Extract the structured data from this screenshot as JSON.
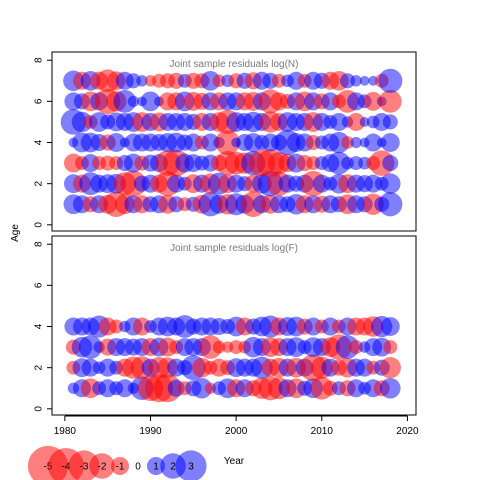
{
  "chart_data": {
    "type": "scatter",
    "xlabel": "Year",
    "ylabel": "Age",
    "xlim": [
      1978.5,
      2021
    ],
    "x_ticks": [
      "1980",
      "1990",
      "2000",
      "2010",
      "2020"
    ],
    "legend": {
      "placement": "bottom-left",
      "values": [
        -5,
        -4,
        -3,
        -2,
        -1,
        0,
        1,
        2,
        3
      ],
      "labels": [
        "-5",
        "-4",
        "-3",
        "-2",
        "-1",
        "0",
        "1",
        "2",
        "3"
      ]
    },
    "colors": {
      "positive": "#0000ff",
      "negative": "#ff0000",
      "frame": "#000000",
      "title": "#7a7a7a"
    },
    "panels": [
      {
        "title": "Joint sample residuals log(N)",
        "ylim": [
          -0.3,
          8.4
        ],
        "y_ticks": [
          "0",
          "2",
          "4",
          "6",
          "8"
        ],
        "ages": [
          1,
          2,
          3,
          4,
          5,
          6,
          7
        ],
        "years": [
          1981,
          2018
        ],
        "residuals": {
          "1": [
            1.2,
            1.0,
            -0.8,
            1.0,
            -1.1,
            -2.0,
            -1.2,
            1.0,
            -1.0,
            0.8,
            1.0,
            -1.1,
            0.8,
            -0.6,
            0.7,
            -1.1,
            1.8,
            1.1,
            -1.3,
            1.5,
            1.1,
            -2.0,
            1.0,
            -1.1,
            1.0,
            0.8,
            1.3,
            -1.0,
            1.0,
            -0.9,
            1.0,
            0.8,
            -1.2,
            1.0,
            0.8,
            -1.4,
            0.7,
            1.8
          ],
          "2": [
            1.1,
            -1.0,
            1.6,
            1.0,
            1.1,
            1.2,
            -1.6,
            -2.1,
            0.8,
            1.0,
            -1.0,
            -1.9,
            1.0,
            0.6,
            -1.1,
            1.0,
            -1.3,
            1.5,
            -1.1,
            1.0,
            0.7,
            -1.0,
            1.2,
            2.0,
            -1.8,
            1.0,
            0.8,
            1.0,
            -2.0,
            1.0,
            0.6,
            1.2,
            -1.1,
            1.0,
            0.9,
            1.0,
            0.6,
            1.3
          ],
          "3": [
            -1.1,
            -0.6,
            1.0,
            -0.6,
            -0.7,
            -0.6,
            0.8,
            1.1,
            -0.7,
            0.9,
            1.0,
            -2.0,
            -2.2,
            1.1,
            1.0,
            0.7,
            0.9,
            -0.8,
            -1.8,
            -1.6,
            -1.4,
            1.8,
            -2.2,
            -2.4,
            -1.5,
            -1.0,
            1.1,
            -0.8,
            -0.6,
            0.6,
            1.0,
            1.6,
            0.5,
            0.6,
            0.5,
            -0.6,
            -2.0,
            0.8
          ],
          "4": [
            0.3,
            1.2,
            1.2,
            0.9,
            -0.8,
            1.1,
            0.3,
            1.0,
            1.0,
            1.0,
            0.9,
            1.1,
            1.2,
            0.8,
            1.0,
            -0.6,
            1.0,
            0.4,
            -1.9,
            0.3,
            0.9,
            1.1,
            0.7,
            1.0,
            0.8,
            2.0,
            1.1,
            1.0,
            -0.7,
            0.6,
            1.0,
            1.4,
            -0.5,
            0.4,
            0.3,
            1.0,
            0.3,
            1.1
          ],
          "5": [
            2.0,
            1.3,
            -0.6,
            1.2,
            0.7,
            1.1,
            1.0,
            1.2,
            -1.2,
            1.0,
            -1.1,
            1.0,
            1.0,
            1.0,
            0.8,
            -1.0,
            1.0,
            -1.2,
            -1.8,
            1.2,
            1.0,
            1.3,
            1.0,
            -1.4,
            -1.0,
            1.2,
            1.0,
            1.0,
            -1.2,
            1.0,
            0.6,
            1.0,
            0.4,
            -1.0,
            0.3,
            0.5,
            1.0,
            0.7
          ],
          "6": [
            1.0,
            0.8,
            -1.2,
            1.0,
            -2.0,
            -1.3,
            1.6,
            0.4,
            0.3,
            1.2,
            0.3,
            -1.0,
            -1.0,
            1.2,
            -1.1,
            -0.9,
            1.0,
            -1.0,
            1.0,
            1.0,
            -1.0,
            -1.1,
            1.0,
            -1.8,
            -1.0,
            -0.7,
            1.0,
            -1.2,
            1.0,
            -0.8,
            1.0,
            -0.6,
            -1.6,
            1.0,
            0.6,
            -1.1,
            0.3,
            -1.6
          ],
          "7": [
            1.3,
            -1.0,
            1.2,
            -1.0,
            -1.6,
            -1.1,
            1.0,
            0.7,
            0.4,
            -0.4,
            -0.6,
            -0.7,
            -0.8,
            0.6,
            -0.8,
            -0.7,
            1.2,
            -0.5,
            0.5,
            -0.7,
            0.8,
            -0.9,
            1.0,
            0.8,
            -0.6,
            0.5,
            1.0,
            -0.6,
            1.0,
            0.8,
            -1.0,
            -1.2,
            0.7,
            0.4,
            0.3,
            0.3,
            -0.6,
            1.8
          ]
        }
      },
      {
        "title": "Joint sample residuals log(F)",
        "ylim": [
          -0.3,
          8.4
        ],
        "y_ticks": [
          "0",
          "2",
          "4",
          "6",
          "8"
        ],
        "ages": [
          1,
          2,
          3,
          4
        ],
        "years": [
          1981,
          2018
        ],
        "residuals": {
          "1": [
            0.4,
            1.0,
            -1.2,
            0.6,
            1.0,
            0.6,
            1.0,
            0.4,
            1.7,
            -2.0,
            -2.4,
            -2.4,
            0.9,
            -0.6,
            0.8,
            1.3,
            -0.4,
            0.6,
            1.2,
            -1.0,
            1.0,
            -0.8,
            -1.4,
            -1.8,
            -1.5,
            1.0,
            -1.2,
            0.7,
            1.2,
            -1.6,
            -0.7,
            0.6,
            -0.8,
            1.0,
            0.5,
            1.0,
            -0.8,
            1.3
          ],
          "2": [
            -0.6,
            1.1,
            1.0,
            0.5,
            1.0,
            0.6,
            -1.0,
            -1.5,
            -1.6,
            1.0,
            -1.4,
            -1.3,
            1.0,
            0.7,
            1.9,
            -1.2,
            -0.6,
            -1.0,
            -0.7,
            1.1,
            1.0,
            1.0,
            1.5,
            -1.0,
            -1.2,
            1.0,
            -1.2,
            1.0,
            -2.2,
            -1.5,
            1.0,
            -0.8,
            -1.2,
            1.0,
            1.0,
            -0.6,
            0.8,
            -1.4
          ],
          "3": [
            -0.7,
            1.3,
            1.7,
            0.4,
            -0.9,
            1.0,
            1.0,
            0.9,
            1.0,
            -1.0,
            1.1,
            -1.1,
            -0.6,
            1.0,
            1.0,
            1.0,
            -1.7,
            -0.5,
            -0.4,
            -0.6,
            -0.5,
            1.3,
            1.0,
            -1.2,
            -1.0,
            1.0,
            1.2,
            0.6,
            1.2,
            1.0,
            -1.2,
            -2.0,
            1.7,
            -0.6,
            0.4,
            1.0,
            1.1,
            -0.6
          ],
          "4": [
            1.0,
            1.0,
            1.0,
            1.5,
            -1.0,
            -0.6,
            0.4,
            1.0,
            -1.0,
            0.5,
            1.0,
            1.2,
            1.0,
            1.6,
            0.8,
            1.0,
            1.0,
            0.9,
            0.7,
            1.2,
            -1.0,
            0.8,
            1.2,
            1.5,
            -1.0,
            1.1,
            1.2,
            -0.8,
            1.0,
            -0.6,
            1.0,
            -0.6,
            1.0,
            -1.0,
            -1.0,
            -1.3,
            1.4,
            1.1
          ]
        }
      }
    ]
  }
}
